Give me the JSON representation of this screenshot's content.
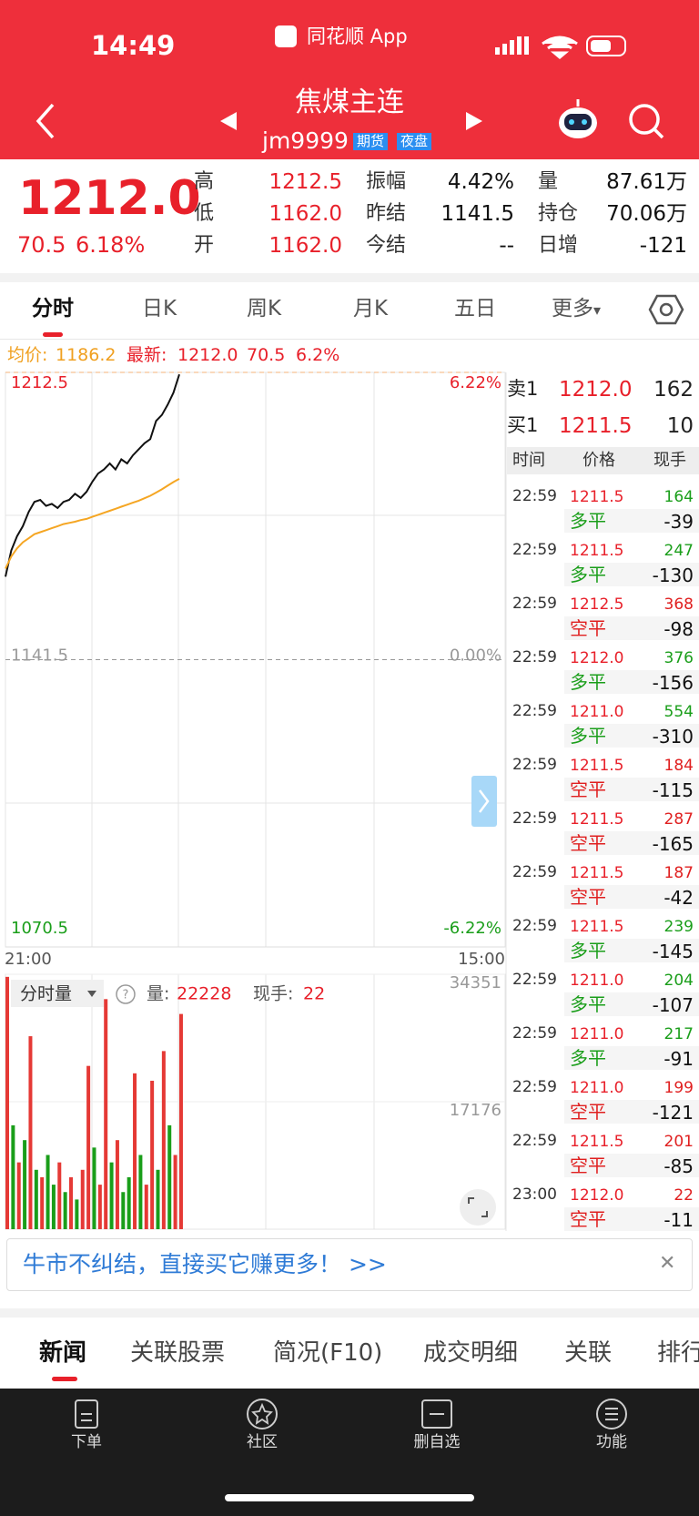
{
  "status_bar": {
    "time": "14:49",
    "app": "同花顺 App"
  },
  "header": {
    "title": "焦煤主连",
    "code": "jm9999",
    "badges": [
      "期货",
      "夜盘"
    ]
  },
  "quote": {
    "price": "1212.0",
    "change": "70.5",
    "percent": "6.18%",
    "stats": [
      {
        "label": "高",
        "value": "1212.5"
      },
      {
        "label": "振幅",
        "value": "4.42%"
      },
      {
        "label": "量",
        "value": "87.61万"
      },
      {
        "label": "低",
        "value": "1162.0"
      },
      {
        "label": "昨结",
        "value": "1141.5"
      },
      {
        "label": "持仓",
        "value": "70.06万"
      },
      {
        "label": "开",
        "value": "1162.0"
      },
      {
        "label": "今结",
        "value": "--"
      },
      {
        "label": "日增",
        "value": "-121"
      }
    ]
  },
  "tabs": [
    "分时",
    "日K",
    "周K",
    "月K",
    "五日",
    "更多"
  ],
  "chart_info": {
    "avg": "1186.2",
    "last_label": "最新:",
    "last": "1212.0",
    "change": "70.5",
    "percent": "6.2%"
  },
  "chart_data": [
    {
      "type": "line",
      "xlim": [
        0,
        345
      ],
      "xticks": [
        {
          "value": 0,
          "label": "21:00"
        },
        {
          "value": 345,
          "label": "15:00"
        }
      ],
      "ylim": [
        1070.5,
        1212.5
      ],
      "yticks": [
        1212.5,
        1141.5,
        1070.5
      ],
      "y2lim": [
        -6.22,
        6.22
      ],
      "y2ticks": [
        {
          "value": 6.22,
          "label": "6.22%"
        },
        {
          "value": 0,
          "label": "0.00%"
        },
        {
          "value": -6.22,
          "label": "-6.22%"
        }
      ],
      "x": [
        0,
        4,
        8,
        12,
        16,
        20,
        24,
        28,
        32,
        36,
        40,
        44,
        48,
        52,
        56,
        60,
        64,
        68,
        72,
        76,
        80,
        84,
        88,
        92,
        96,
        100,
        104,
        108,
        112,
        116,
        120
      ],
      "series": [
        {
          "color": "#111111",
          "values": [
            1162.0,
            1168.5,
            1172.0,
            1174.5,
            1178.0,
            1180.5,
            1181.0,
            1179.5,
            1180.0,
            1179.0,
            1180.5,
            1181.0,
            1182.5,
            1181.5,
            1183.0,
            1185.5,
            1187.5,
            1188.5,
            1190.0,
            1188.5,
            1191.0,
            1190.0,
            1192.0,
            1193.5,
            1195.0,
            1196.0,
            1200.5,
            1202.0,
            1204.5,
            1207.5,
            1212.0
          ]
        },
        {
          "name": "均价:",
          "color": "#f5a623",
          "values": [
            1164.0,
            1167.0,
            1169.0,
            1170.5,
            1171.5,
            1172.5,
            1173.0,
            1173.5,
            1174.0,
            1174.5,
            1175.0,
            1175.3,
            1175.6,
            1176.0,
            1176.3,
            1176.8,
            1177.3,
            1177.8,
            1178.3,
            1178.8,
            1179.3,
            1179.8,
            1180.3,
            1180.8,
            1181.4,
            1182.0,
            1182.8,
            1183.6,
            1184.5,
            1185.4,
            1186.2
          ]
        }
      ]
    },
    {
      "type": "bar",
      "title": "分时量",
      "xlim": [
        0,
        345
      ],
      "ylim": [
        0,
        34351
      ],
      "yticks": [
        34351,
        17176
      ],
      "x": [
        0,
        4,
        8,
        12,
        16,
        20,
        24,
        28,
        32,
        36,
        40,
        44,
        48,
        52,
        56,
        60,
        64,
        68,
        72,
        76,
        80,
        84,
        88,
        92,
        96,
        100,
        104,
        108,
        112,
        116,
        120
      ],
      "series": [
        {
          "values": [
            34000,
            14000,
            9000,
            12000,
            26000,
            8000,
            7000,
            10000,
            6000,
            9000,
            5000,
            7000,
            4000,
            8000,
            22000,
            11000,
            6000,
            31000,
            9000,
            12000,
            5000,
            7000,
            21000,
            10000,
            6000,
            20000,
            8000,
            24000,
            14000,
            10000,
            29000
          ],
          "colors": [
            "#e53935",
            "#1a9e1a",
            "#e53935",
            "#1a9e1a",
            "#e53935",
            "#1a9e1a",
            "#e53935",
            "#1a9e1a",
            "#1a9e1a",
            "#e53935",
            "#1a9e1a",
            "#e53935",
            "#1a9e1a",
            "#e53935",
            "#e53935",
            "#1a9e1a",
            "#e53935",
            "#e53935",
            "#1a9e1a",
            "#e53935",
            "#1a9e1a",
            "#1a9e1a",
            "#e53935",
            "#1a9e1a",
            "#e53935",
            "#e53935",
            "#1a9e1a",
            "#e53935",
            "#1a9e1a",
            "#e53935",
            "#e53935"
          ]
        }
      ]
    }
  ],
  "volume_info": {
    "volume_label": "量:",
    "volume": "22228",
    "hand_label": "现手:",
    "hand": "22"
  },
  "order_book": {
    "sell": {
      "label": "卖1",
      "price": "1212.0",
      "volume": "162"
    },
    "buy": {
      "label": "买1",
      "price": "1211.5",
      "volume": "10"
    }
  },
  "trades": {
    "columns": [
      "时间",
      "价格",
      "现手"
    ],
    "rows": [
      {
        "time": "22:59",
        "price": "1211.5",
        "hand": "164",
        "kind": "多平",
        "delta": "-39",
        "color": "#1a9e1a"
      },
      {
        "time": "22:59",
        "price": "1211.5",
        "hand": "247",
        "kind": "多平",
        "delta": "-130",
        "color": "#1a9e1a"
      },
      {
        "time": "22:59",
        "price": "1212.5",
        "hand": "368",
        "kind": "空平",
        "delta": "-98",
        "color": "#e02020"
      },
      {
        "time": "22:59",
        "price": "1212.0",
        "hand": "376",
        "kind": "多平",
        "delta": "-156",
        "color": "#1a9e1a"
      },
      {
        "time": "22:59",
        "price": "1211.0",
        "hand": "554",
        "kind": "多平",
        "delta": "-310",
        "color": "#1a9e1a"
      },
      {
        "time": "22:59",
        "price": "1211.5",
        "hand": "184",
        "kind": "空平",
        "delta": "-115",
        "color": "#e02020"
      },
      {
        "time": "22:59",
        "price": "1211.5",
        "hand": "287",
        "kind": "空平",
        "delta": "-165",
        "color": "#e02020"
      },
      {
        "time": "22:59",
        "price": "1211.5",
        "hand": "187",
        "kind": "空平",
        "delta": "-42",
        "color": "#e02020"
      },
      {
        "time": "22:59",
        "price": "1211.5",
        "hand": "239",
        "kind": "多平",
        "delta": "-145",
        "color": "#1a9e1a"
      },
      {
        "time": "22:59",
        "price": "1211.0",
        "hand": "204",
        "kind": "多平",
        "delta": "-107",
        "color": "#1a9e1a"
      },
      {
        "time": "22:59",
        "price": "1211.0",
        "hand": "217",
        "kind": "多平",
        "delta": "-91",
        "color": "#1a9e1a"
      },
      {
        "time": "22:59",
        "price": "1211.0",
        "hand": "199",
        "kind": "空平",
        "delta": "-121",
        "color": "#e02020"
      },
      {
        "time": "22:59",
        "price": "1211.5",
        "hand": "201",
        "kind": "空平",
        "delta": "-85",
        "color": "#e02020"
      },
      {
        "time": "23:00",
        "price": "1212.0",
        "hand": "22",
        "kind": "空平",
        "delta": "-11",
        "color": "#e02020"
      }
    ]
  },
  "banner": "牛市不纠结，直接买它赚更多！ >>",
  "bottom_tabs": [
    "新闻",
    "关联股票",
    "简况(F10)",
    "成交明细",
    "关联",
    "排行"
  ],
  "nav": [
    "下单",
    "社区",
    "删自选",
    "功能"
  ]
}
